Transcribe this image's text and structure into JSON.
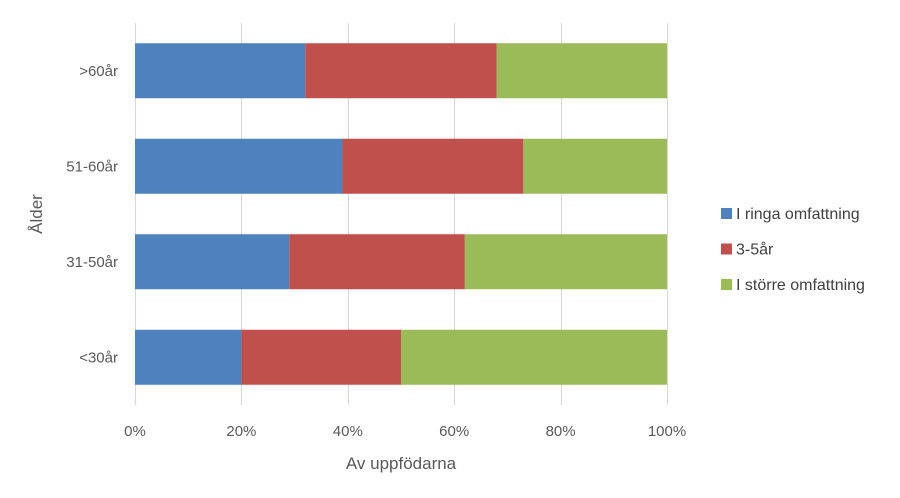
{
  "chart_data": {
    "type": "bar",
    "orientation": "horizontal",
    "stacked": "percent",
    "categories": [
      "<30år",
      "31-50år",
      "51-60år",
      ">60år"
    ],
    "series": [
      {
        "name": "I ringa omfattning",
        "color": "#4f81bd",
        "values": [
          20,
          29,
          39,
          32
        ]
      },
      {
        "name": "3-5år",
        "color": "#c0504d",
        "values": [
          30,
          33,
          34,
          36
        ]
      },
      {
        "name": "I större omfattning",
        "color": "#9bbb59",
        "values": [
          50,
          38,
          27,
          32
        ]
      }
    ],
    "x_ticks": [
      "0%",
      "20%",
      "40%",
      "60%",
      "80%",
      "100%"
    ],
    "xlim": [
      0,
      100
    ],
    "xlabel": "Av uppfödarna",
    "ylabel": "Ålder",
    "grid": "vertical",
    "legend_position": "right"
  }
}
